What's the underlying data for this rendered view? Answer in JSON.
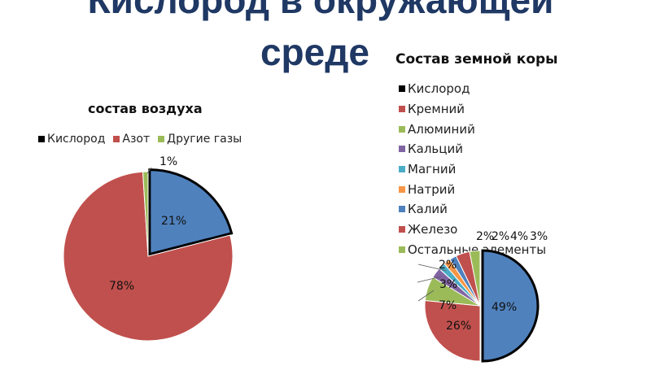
{
  "slide": {
    "title_line1": "Кислород в окружающей",
    "title_line2": "среде"
  },
  "colors": {
    "title": "#1f3864",
    "blue": "#4f81bd",
    "red": "#c0504d",
    "green": "#9bbb59",
    "purple": "#8064a2",
    "teal": "#4bacc6",
    "orange": "#f79646",
    "black": "#000000"
  },
  "chart_data": [
    {
      "type": "pie",
      "title": "состав воздуха",
      "legend_position": "top",
      "categories": [
        "Кислород",
        "Азот",
        "Другие газы"
      ],
      "values": [
        21,
        78,
        1
      ],
      "data_labels": [
        "21%",
        "78%",
        "1%"
      ],
      "colors": [
        "#4f81bd",
        "#c0504d",
        "#9bbb59"
      ],
      "legend_swatches": [
        "#000000",
        "#c0504d",
        "#9bbb59"
      ]
    },
    {
      "type": "pie",
      "title": "Состав земной коры",
      "legend_position": "right",
      "categories": [
        "Кислород",
        "Кремний",
        "Алюминий",
        "Кальций",
        "Магний",
        "Натрий",
        "Калий",
        "Железо",
        "Остальные элементы"
      ],
      "values": [
        49,
        26,
        7,
        3,
        2,
        2,
        2,
        4,
        3
      ],
      "data_labels": [
        "49%",
        "26%",
        "7%",
        "3%",
        "2%",
        "2%",
        "2%",
        "4%",
        "3%"
      ],
      "colors": [
        "#4f81bd",
        "#c0504d",
        "#9bbb59",
        "#8064a2",
        "#4bacc6",
        "#f79646",
        "#4f81bd",
        "#c0504d",
        "#9bbb59"
      ],
      "legend_swatches": [
        "#000000",
        "#c0504d",
        "#9bbb59",
        "#8064a2",
        "#4bacc6",
        "#f79646",
        "#4f81bd",
        "#c0504d",
        "#9bbb59"
      ]
    }
  ]
}
